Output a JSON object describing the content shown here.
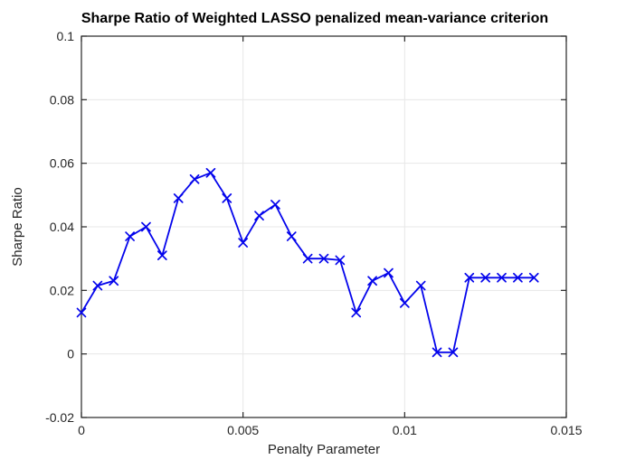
{
  "window": {
    "background": "#FFFFFF"
  },
  "chart_data": {
    "type": "line",
    "title": "Sharpe Ratio of Weighted LASSO penalized mean-variance criterion",
    "xlabel": "Penalty Parameter",
    "ylabel": "Sharpe Ratio",
    "xlim": [
      0,
      0.015
    ],
    "ylim": [
      -0.02,
      0.1
    ],
    "xticks": [
      0,
      0.005,
      0.01,
      0.015
    ],
    "xtick_labels": [
      "0",
      "0.005",
      "0.01",
      "0.015"
    ],
    "yticks": [
      -0.02,
      0,
      0.02,
      0.04,
      0.06,
      0.08,
      0.1
    ],
    "ytick_labels": [
      "-0.02",
      "0",
      "0.02",
      "0.04",
      "0.06",
      "0.08",
      "0.1"
    ],
    "grid": true,
    "legend": "none",
    "marker": "x",
    "series": [
      {
        "name": "Sharpe Ratio",
        "x": [
          0,
          0.0005,
          0.001,
          0.0015,
          0.002,
          0.0025,
          0.003,
          0.0035,
          0.004,
          0.0045,
          0.005,
          0.0055,
          0.006,
          0.0065,
          0.007,
          0.0075,
          0.008,
          0.0085,
          0.009,
          0.0095,
          0.01,
          0.0105,
          0.011,
          0.0115,
          0.012,
          0.0125,
          0.013,
          0.0135,
          0.014
        ],
        "y": [
          0.013,
          0.0215,
          0.023,
          0.037,
          0.04,
          0.031,
          0.049,
          0.055,
          0.057,
          0.049,
          0.035,
          0.0435,
          0.047,
          0.037,
          0.03,
          0.03,
          0.0295,
          0.013,
          0.023,
          0.0255,
          0.016,
          0.0215,
          0.0005,
          0.0005,
          0.024,
          0.024,
          0.024,
          0.024,
          0.024
        ]
      }
    ],
    "colors": {
      "line": "#0404EC",
      "axis": "#262626",
      "grid": "#E7E7E7",
      "title": "#000000",
      "tick_label": "#262626"
    }
  }
}
